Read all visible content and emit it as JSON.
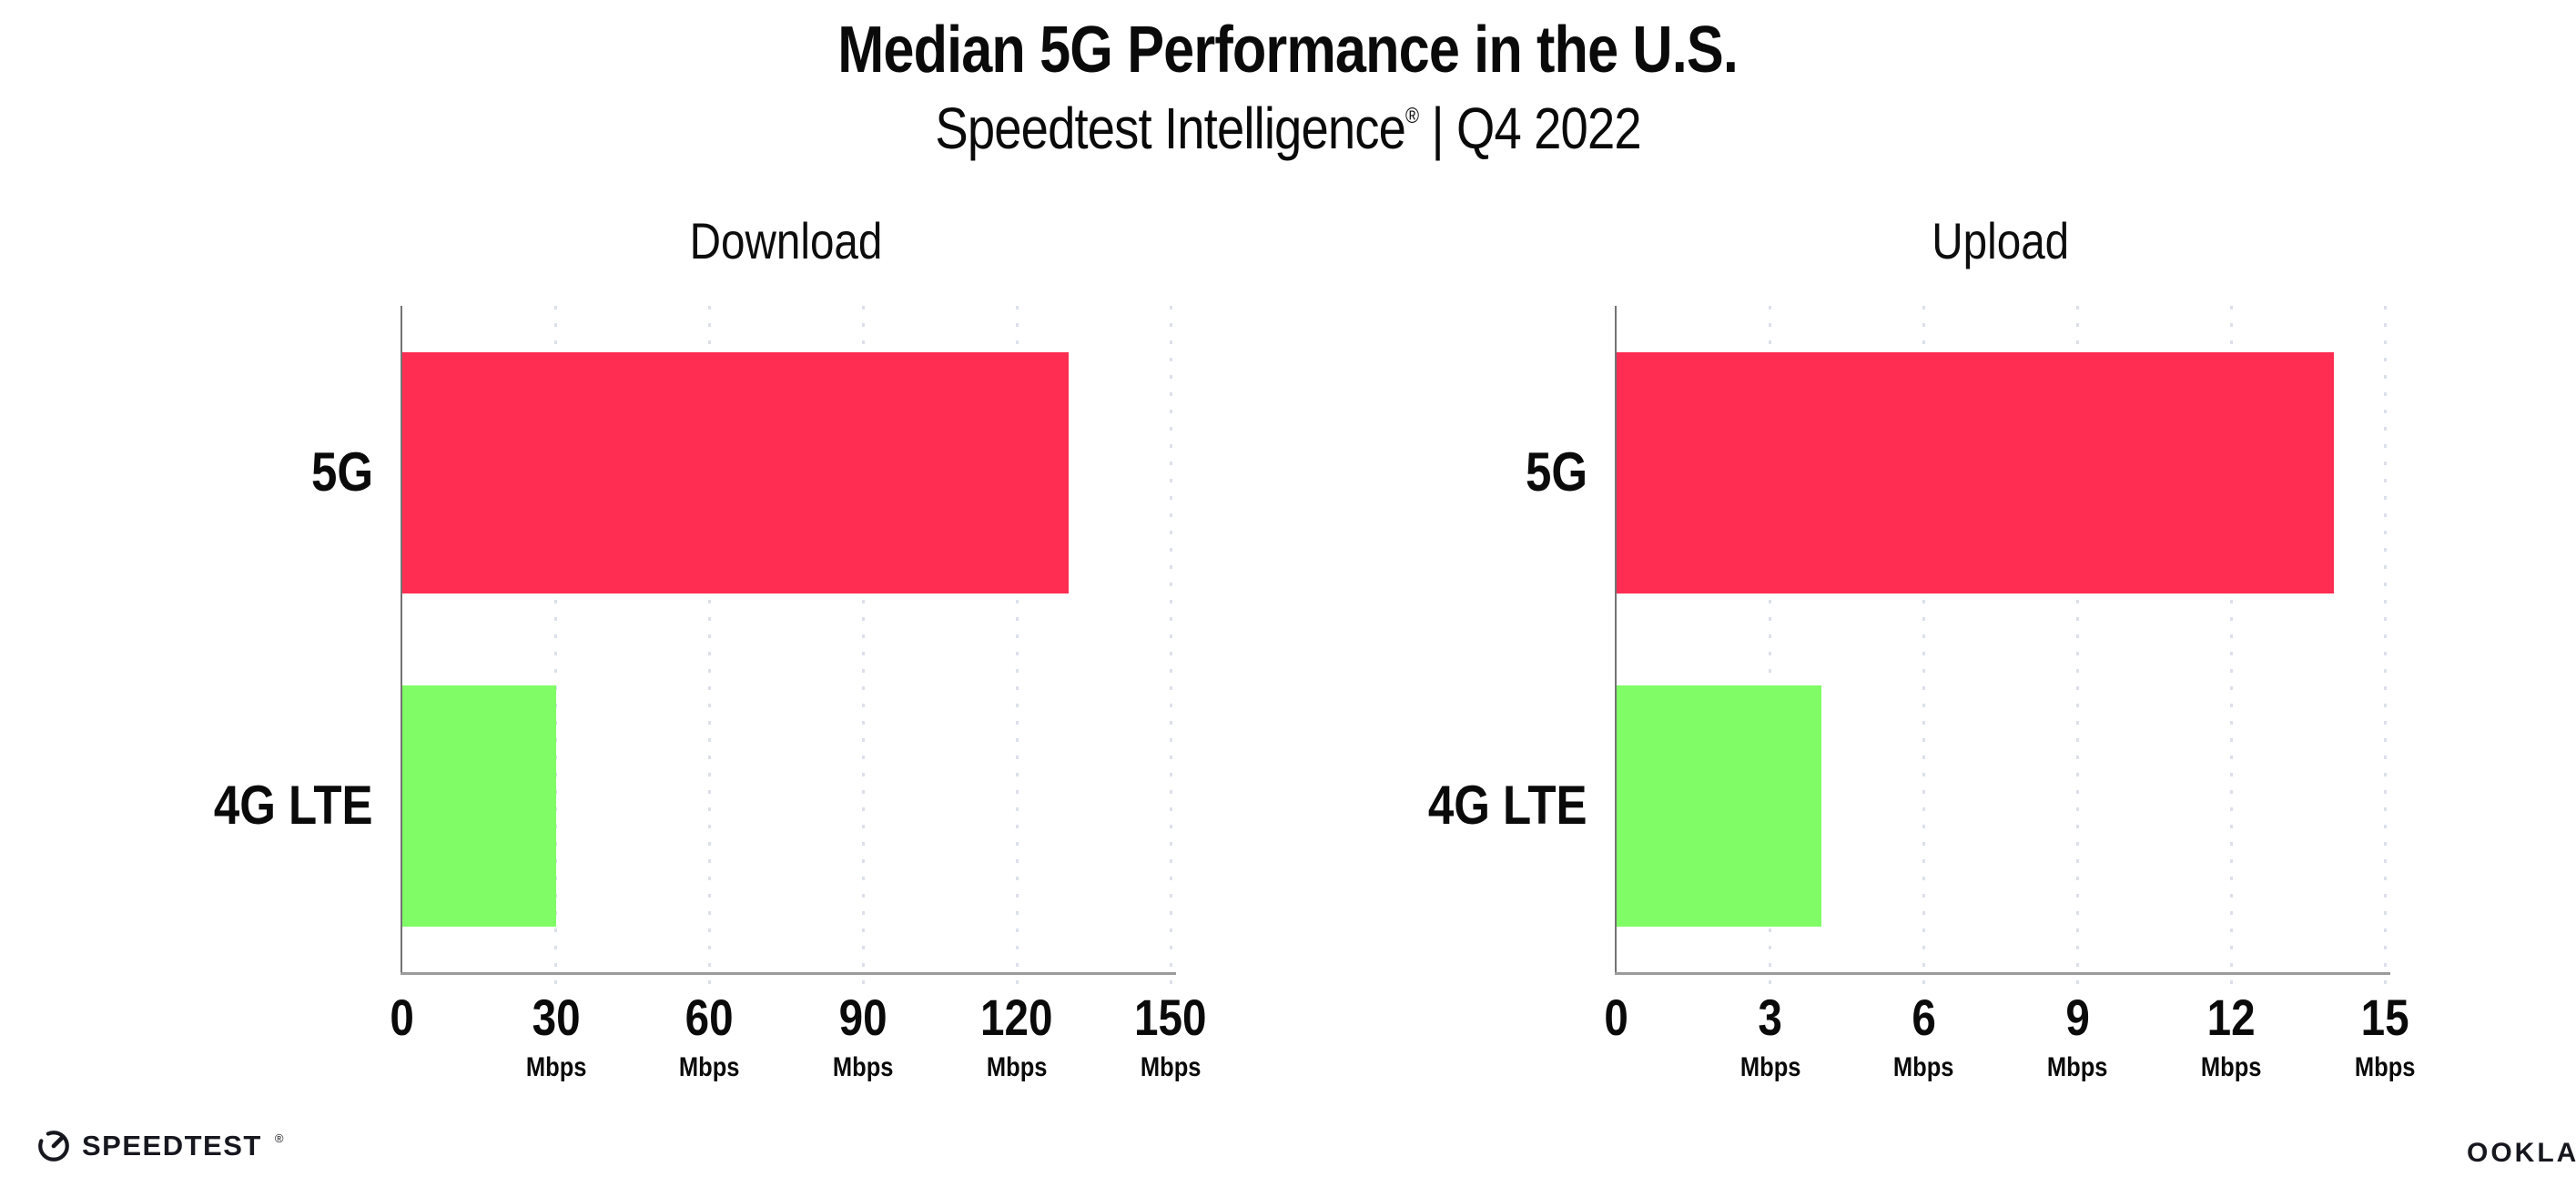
{
  "header": {
    "title": "Median 5G Performance in the U.S.",
    "subtitle_brand": "Speedtest Intelligence",
    "subtitle_reg": "®",
    "subtitle_rest": " | Q4 2022"
  },
  "chart_data": [
    {
      "type": "bar",
      "orientation": "horizontal",
      "title": "Download",
      "categories": [
        "5G",
        "4G LTE"
      ],
      "values": [
        130,
        30
      ],
      "unit": "Mbps",
      "xlim": [
        0,
        150
      ],
      "xticks": [
        0,
        30,
        60,
        90,
        120,
        150
      ],
      "grid": "vertical-dotted",
      "legend": "none",
      "bar_colors": [
        "#FF2D52",
        "#80FC66"
      ]
    },
    {
      "type": "bar",
      "orientation": "horizontal",
      "title": "Upload",
      "categories": [
        "5G",
        "4G LTE"
      ],
      "values": [
        14,
        4
      ],
      "unit": "Mbps",
      "xlim": [
        0,
        15
      ],
      "xticks": [
        0,
        3,
        6,
        9,
        12,
        15
      ],
      "grid": "vertical-dotted",
      "legend": "none",
      "bar_colors": [
        "#FF2D52",
        "#80FC66"
      ]
    }
  ],
  "footer": {
    "speedtest_label": "SPEEDTEST",
    "speedtest_reg": "®",
    "ookla_label": "OOKLA",
    "ookla_reg": "®"
  },
  "colors": {
    "bar_5g": "#FF2D52",
    "bar_4g_lte": "#80FC66",
    "gridline": "#DCE0EB",
    "axis": "#9B9B9B",
    "text": "#0A0A0A",
    "logo": "#17171F"
  }
}
